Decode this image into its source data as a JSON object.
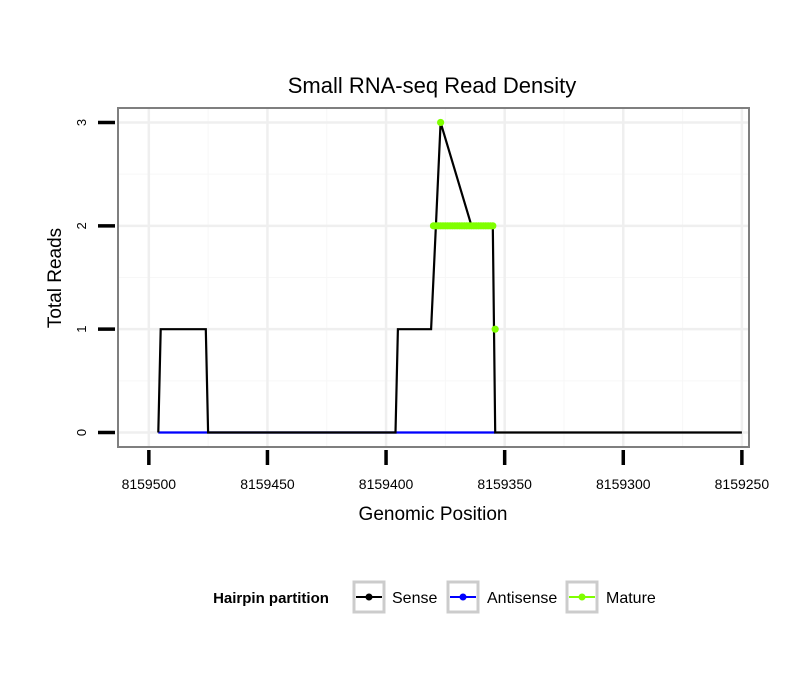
{
  "chart_data": {
    "type": "line",
    "title": "Small RNA-seq Read Density",
    "xlabel": "Genomic Position",
    "ylabel": "Total Reads",
    "xlim": [
      8159513,
      8159247
    ],
    "ylim": [
      -0.14,
      3.14
    ],
    "x_reversed": true,
    "x_ticks": [
      8159500,
      8159450,
      8159400,
      8159350,
      8159300,
      8159250
    ],
    "x_tick_labels": [
      "8159500",
      "8159450",
      "8159400",
      "8159350",
      "8159300",
      "8159250"
    ],
    "y_ticks": [
      0,
      1,
      2,
      3
    ],
    "y_tick_labels": [
      "0",
      "1",
      "2",
      "3"
    ],
    "grid": true,
    "legend": {
      "title": "Hairpin partition",
      "position": "bottom",
      "entries": [
        "Sense",
        "Antisense",
        "Mature"
      ]
    },
    "series": [
      {
        "name": "Sense",
        "color": "#000000",
        "style": "line",
        "x": [
          8159496,
          8159495,
          8159476,
          8159475,
          8159396,
          8159395,
          8159381,
          8159379,
          8159377,
          8159364,
          8159355,
          8159354,
          8159250
        ],
        "y": [
          0,
          1,
          1,
          0,
          0,
          1,
          1,
          2,
          3,
          2,
          2,
          0,
          0
        ]
      },
      {
        "name": "Antisense",
        "color": "#0000ff",
        "style": "line",
        "x": [
          8159496,
          8159475,
          8159396,
          8159354
        ],
        "y": [
          0,
          0,
          0,
          0
        ]
      },
      {
        "name": "Mature",
        "color": "#80ff00",
        "style": "points",
        "x": [
          8159377,
          8159380,
          8159379,
          8159378,
          8159377,
          8159376,
          8159375,
          8159374,
          8159373,
          8159372,
          8159371,
          8159370,
          8159369,
          8159368,
          8159367,
          8159366,
          8159365,
          8159364,
          8159363,
          8159362,
          8159361,
          8159360,
          8159359,
          8159358,
          8159357,
          8159356,
          8159355,
          8159354
        ],
        "y": [
          3,
          2,
          2,
          2,
          2,
          2,
          2,
          2,
          2,
          2,
          2,
          2,
          2,
          2,
          2,
          2,
          2,
          2,
          2,
          2,
          2,
          2,
          2,
          2,
          2,
          2,
          2,
          1
        ]
      }
    ]
  }
}
